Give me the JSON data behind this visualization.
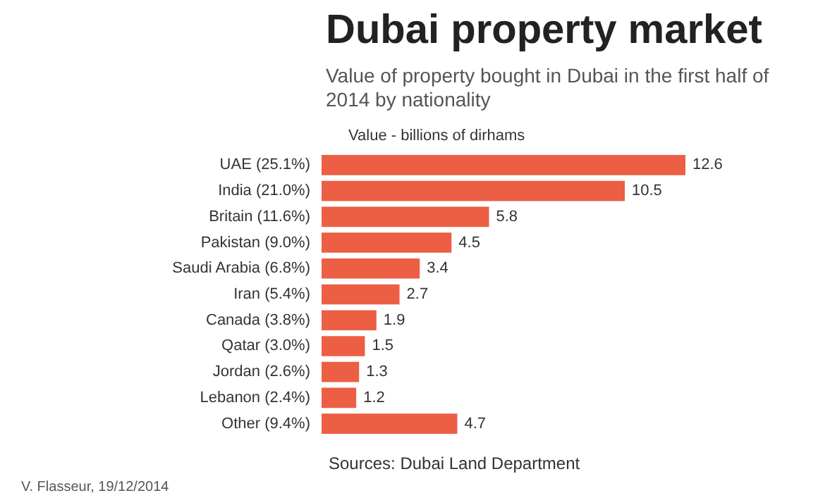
{
  "chart_data": {
    "type": "bar",
    "orientation": "horizontal",
    "title": "Dubai property market",
    "subtitle": "Value of property bought in Dubai in the first half of 2014 by nationality",
    "xlabel": "Value - billions of dirhams",
    "categories": [
      "UAE (25.1%)",
      "India (21.0%)",
      "Britain (11.6%)",
      "Pakistan (9.0%)",
      "Saudi Arabia (6.8%)",
      "Iran (5.4%)",
      "Canada (3.8%)",
      "Qatar (3.0%)",
      "Jordan (2.6%)",
      "Lebanon (2.4%)",
      "Other (9.4%)"
    ],
    "values": [
      12.6,
      10.5,
      5.8,
      4.5,
      3.4,
      2.7,
      1.9,
      1.5,
      1.3,
      1.2,
      4.7
    ],
    "color": "#ec5f45",
    "data_labels": true,
    "annotations": [
      "Sources: Dubai Land Department",
      "V. Flasseur, 19/12/2014"
    ]
  }
}
